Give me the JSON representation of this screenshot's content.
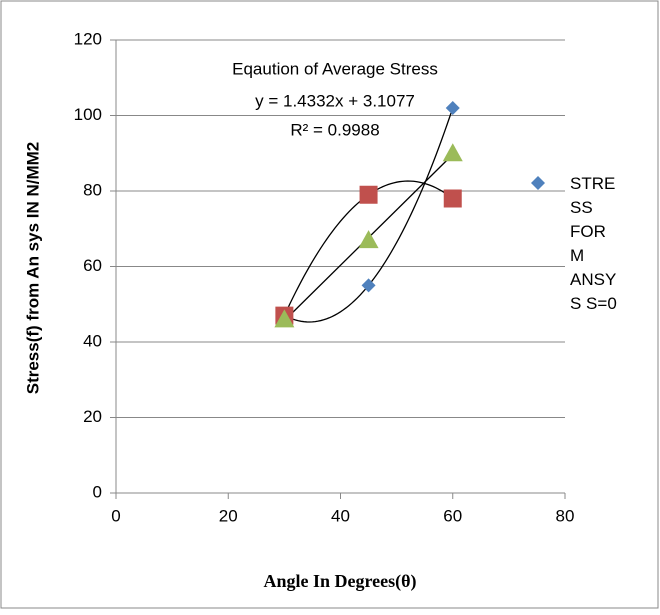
{
  "chart_data": {
    "type": "scatter",
    "xlabel": "Angle  In Degrees(θ)",
    "ylabel": "Stress(f) from An sys IN N/MM2",
    "annotations": [
      "Eqaution of Average Stress",
      "y = 1.4332x + 3.1077",
      "R² = 0.9988"
    ],
    "series": [
      {
        "name": "STRESS FORM ANSYS S=0",
        "color": "#4f81bd",
        "marker": "diamond",
        "x": [
          30,
          45,
          60
        ],
        "values": [
          47,
          55,
          102
        ]
      },
      {
        "color": "#c0504d",
        "marker": "square",
        "x": [
          30,
          45,
          60
        ],
        "values": [
          47,
          79,
          78
        ]
      },
      {
        "color": "#9bbb59",
        "marker": "triangle",
        "x": [
          30,
          45,
          60
        ],
        "values": [
          46,
          67,
          90
        ]
      }
    ],
    "xlim": [
      0,
      80
    ],
    "xticks": [
      0,
      20,
      40,
      60,
      80
    ],
    "ylim": [
      0,
      120
    ],
    "yticks": [
      0,
      20,
      40,
      60,
      80,
      100,
      120
    ],
    "grid": true
  }
}
